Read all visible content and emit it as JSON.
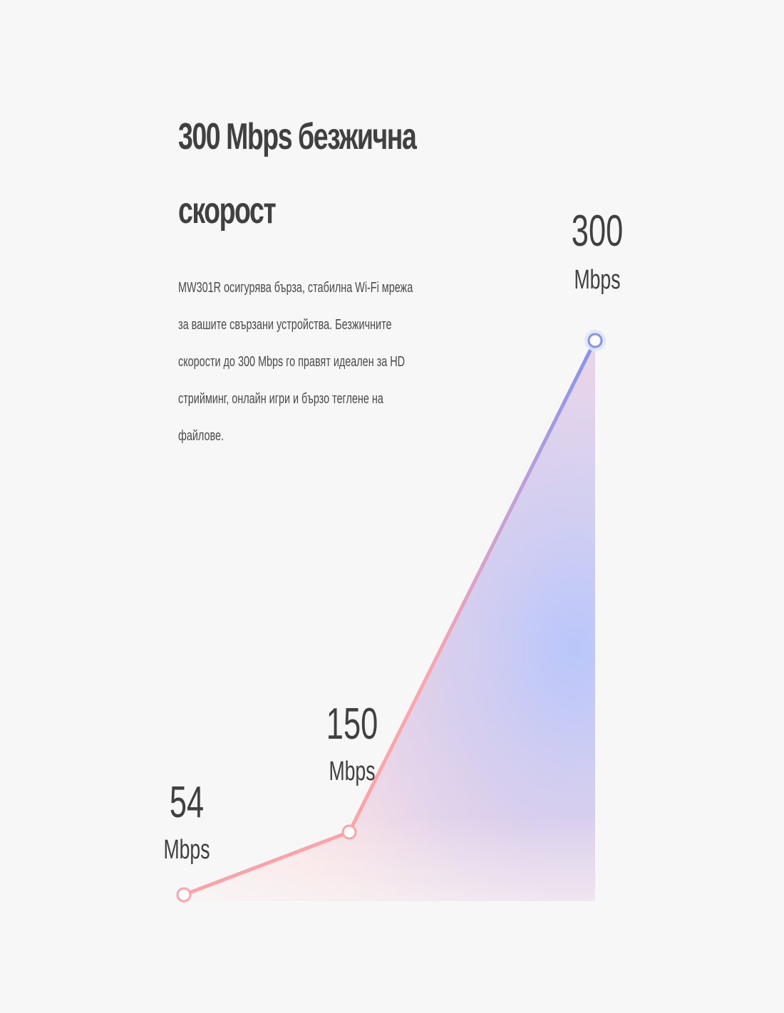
{
  "section": {
    "title_line1": "300 Mbps безжична",
    "title_line2": "скорост",
    "description": "MW301R осигурява бърза, стабилна Wi-Fi мрежа за вашите свързани устройства. Безжичните скорости до 300 Mbps го правят идеален за HD стрийминг, онлайн игри и бързо теглене на файлове."
  },
  "chart_data": {
    "type": "line",
    "x": [
      "54 Mbps",
      "150 Mbps",
      "300 Mbps"
    ],
    "values": [
      54,
      150,
      300
    ],
    "labels": [
      {
        "value": "54",
        "unit": "Mbps"
      },
      {
        "value": "150",
        "unit": "Mbps"
      },
      {
        "value": "300",
        "unit": "Mbps"
      }
    ],
    "title": "",
    "xlabel": "",
    "ylabel": "",
    "ylim": [
      0,
      300
    ],
    "grid": false,
    "colors": {
      "line_start": "#ff9e9e",
      "line_end": "#6f86ff",
      "fill_pink": "#ffc8cc",
      "fill_blue": "#c3cdfb"
    }
  }
}
